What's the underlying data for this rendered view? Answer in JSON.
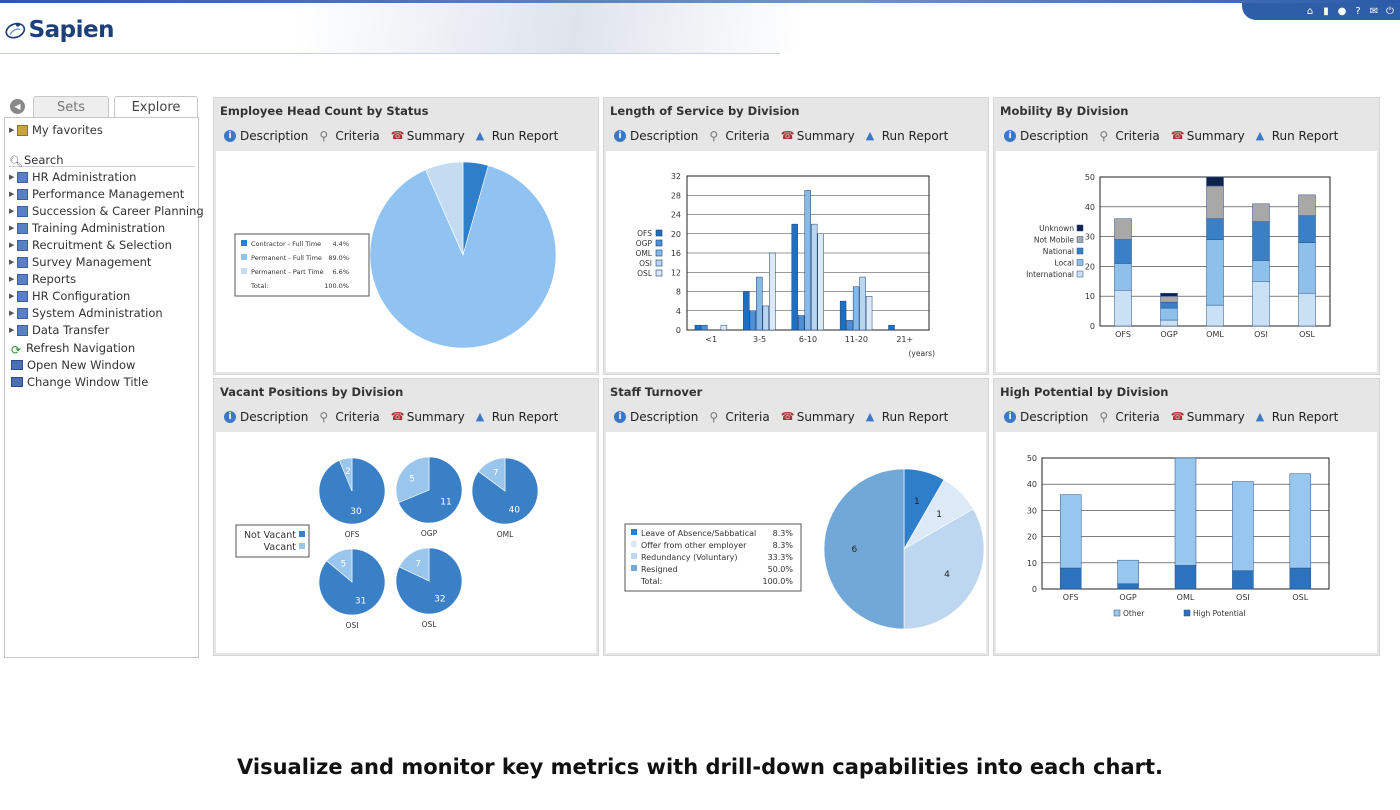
{
  "app": {
    "logo_text": "Sapien"
  },
  "top_toolbar": {
    "icons": [
      "home-icon",
      "chart-icon",
      "gear-icon",
      "help-icon",
      "mail-icon",
      "power-icon"
    ]
  },
  "sidebar": {
    "tabs": [
      "Sets",
      "Explore"
    ],
    "favorites": "My favorites",
    "search": "Search",
    "items": [
      "HR Administration",
      "Performance Management",
      "Succession & Career Planning",
      "Training Administration",
      "Recruitment & Selection",
      "Survey Management",
      "Reports",
      "HR Configuration",
      "System Administration",
      "Data Transfer"
    ],
    "utilities": [
      "Refresh Navigation",
      "Open New Window",
      "Change Window Title"
    ]
  },
  "actions": {
    "description": "Description",
    "criteria": "Criteria",
    "summary": "Summary",
    "run_report": "Run Report"
  },
  "panels": {
    "headcount": {
      "title": "Employee Head Count by Status",
      "chart_data": {
        "type": "pie",
        "legend": [
          {
            "label": "Contractor - Full Time",
            "value": "4.4%",
            "color": "#2f7ec9"
          },
          {
            "label": "Permanent - Full Time",
            "value": "89.0%",
            "color": "#90c3f2"
          },
          {
            "label": "Permanent - Part Time",
            "value": "6.6%",
            "color": "#c4dcf2"
          }
        ],
        "total_label": "Total:",
        "total_value": "100.0%",
        "slices": [
          4.4,
          89.0,
          6.6
        ]
      }
    },
    "service": {
      "title": "Length of Service by Division",
      "chart_data": {
        "type": "bar",
        "categories": [
          "<1",
          "3-5",
          "6-10",
          "11-20",
          "21+"
        ],
        "xlabel": "(years)",
        "ylim": [
          0,
          32
        ],
        "yticks": [
          "0",
          "4",
          "8",
          "12",
          "16",
          "20",
          "24",
          "28",
          "32"
        ],
        "series": [
          {
            "name": "OFS",
            "color": "#1f6fc0",
            "values": [
              1,
              8,
              22,
              6,
              1
            ]
          },
          {
            "name": "OGP",
            "color": "#4f90d4",
            "values": [
              1,
              4,
              3,
              2,
              0
            ]
          },
          {
            "name": "OML",
            "color": "#86b9e8",
            "values": [
              0,
              11,
              29,
              9,
              0
            ]
          },
          {
            "name": "OSI",
            "color": "#b9d6f1",
            "values": [
              0,
              5,
              22,
              11,
              0
            ]
          },
          {
            "name": "OSL",
            "color": "#dbe9f7",
            "values": [
              1,
              16,
              20,
              7,
              0
            ]
          }
        ]
      }
    },
    "mobility": {
      "title": "Mobility By Division",
      "chart_data": {
        "type": "bar",
        "stacked": true,
        "categories": [
          "OFS",
          "OGP",
          "OML",
          "OSI",
          "OSL"
        ],
        "ylim": [
          0,
          50
        ],
        "yticks": [
          "0",
          "10",
          "20",
          "30",
          "40",
          "50"
        ],
        "series": [
          {
            "name": "International",
            "color": "#c9e0f5",
            "values": [
              12,
              2,
              7,
              15,
              11
            ]
          },
          {
            "name": "Local",
            "color": "#8fc0ec",
            "values": [
              9,
              4,
              22,
              7,
              17
            ]
          },
          {
            "name": "National",
            "color": "#3a80c6",
            "values": [
              8,
              2,
              7,
              13,
              9
            ]
          },
          {
            "name": "Not Mobile",
            "color": "#a8a8a8",
            "values": [
              7,
              2,
              11,
              6,
              7
            ]
          },
          {
            "name": "Unknown",
            "color": "#10234f",
            "values": [
              0,
              1,
              3,
              0,
              0
            ]
          }
        ],
        "legend_order": [
          "Unknown",
          "Not Mobile",
          "National",
          "Local",
          "International"
        ]
      }
    },
    "vacant": {
      "title": "Vacant Positions by Division",
      "chart_data": {
        "type": "pie",
        "legend": [
          {
            "label": "Not Vacant",
            "color": "#3a80c6"
          },
          {
            "label": "Vacant",
            "color": "#9ac6ee"
          }
        ],
        "pies": [
          {
            "name": "OFS",
            "not_vacant": 30,
            "vacant": 2
          },
          {
            "name": "OGP",
            "not_vacant": 11,
            "vacant": 5
          },
          {
            "name": "OML",
            "not_vacant": 40,
            "vacant": 7
          },
          {
            "name": "OSI",
            "not_vacant": 31,
            "vacant": 5
          },
          {
            "name": "OSL",
            "not_vacant": 32,
            "vacant": 7
          }
        ]
      }
    },
    "turnover": {
      "title": "Staff Turnover",
      "chart_data": {
        "type": "pie",
        "legend": [
          {
            "label": "Leave of Absence/Sabbatical",
            "value": "8.3%",
            "color": "#2f7ec9"
          },
          {
            "label": "Offer from other employer",
            "value": "8.3%",
            "color": "#dce9f6"
          },
          {
            "label": "Redundancy (Voluntary)",
            "value": "33.3%",
            "color": "#bcd7ef"
          },
          {
            "label": "Resigned",
            "value": "50.0%",
            "color": "#72a8d8"
          }
        ],
        "total_label": "Total:",
        "total_value": "100.0%",
        "slices": [
          1,
          1,
          4,
          6
        ]
      }
    },
    "potential": {
      "title": "High Potential by Division",
      "chart_data": {
        "type": "bar",
        "stacked": true,
        "categories": [
          "OFS",
          "OGP",
          "OML",
          "OSI",
          "OSL"
        ],
        "ylim": [
          0,
          50
        ],
        "yticks": [
          "0",
          "10",
          "20",
          "30",
          "40",
          "50"
        ],
        "series": [
          {
            "name": "High Potential",
            "color": "#2d72bd",
            "values": [
              8,
              2,
              9,
              7,
              8
            ]
          },
          {
            "name": "Other",
            "color": "#97c6ef",
            "values": [
              28,
              9,
              41,
              34,
              36
            ]
          }
        ],
        "legend_order": [
          "Other",
          "High Potential"
        ]
      }
    }
  },
  "caption": "Visualize and monitor key metrics with drill-down capabilities into each chart."
}
